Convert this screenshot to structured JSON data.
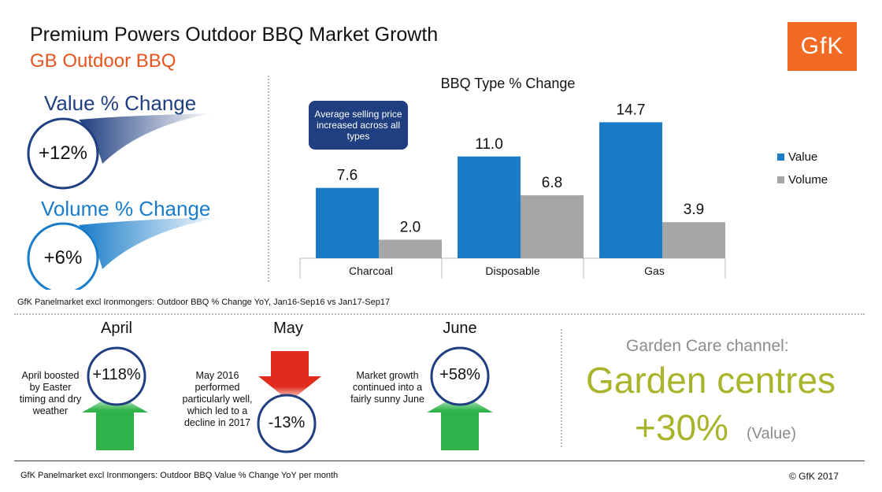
{
  "header": {
    "title": "Premium Powers Outdoor BBQ Market Growth",
    "subtitle": "GB Outdoor BBQ",
    "logo_text": "GfK"
  },
  "kpis": {
    "value_label": "Value % Change",
    "value": "+12%",
    "volume_label": "Volume % Change",
    "volume": "+6%"
  },
  "callout": "Average selling price increased across all types",
  "source_top": "GfK Panelmarket  excl Ironmongers: Outdoor BBQ % Change YoY, Jan16-Sep16 vs Jan17-Sep17",
  "months": [
    {
      "name": "April",
      "value": "+118%",
      "note": "April boosted by Easter timing and dry weather",
      "direction": "up"
    },
    {
      "name": "May",
      "value": "-13%",
      "note": "May 2016 performed particularly well, which led to a decline in 2017",
      "direction": "down"
    },
    {
      "name": "June",
      "value": "+58%",
      "note": "Market growth continued into a fairly sunny June",
      "direction": "up"
    }
  ],
  "garden": {
    "heading": "Garden Care channel:",
    "big": "Garden centres",
    "pct": "+30%",
    "unit": "(Value)"
  },
  "source_bottom": "GfK Panelmarket  excl Ironmongers: Outdoor BBQ Value % Change YoY per month",
  "copyright": "© GfK 2017",
  "colors": {
    "value": "#1a7cc9",
    "volume": "#a6a6a6",
    "navy": "#1f3f80",
    "orange": "#e8541d",
    "green": "#2fb34a",
    "red": "#e02a1c",
    "olive": "#a8b52b"
  },
  "chart_data": {
    "type": "bar",
    "title": "BBQ Type % Change",
    "categories": [
      "Charcoal",
      "Disposable",
      "Gas"
    ],
    "series": [
      {
        "name": "Value",
        "values": [
          7.6,
          11.0,
          14.7
        ]
      },
      {
        "name": "Volume",
        "values": [
          2.0,
          6.8,
          3.9
        ]
      }
    ],
    "ylim": [
      0,
      16
    ],
    "legend": "right",
    "grid": false
  }
}
